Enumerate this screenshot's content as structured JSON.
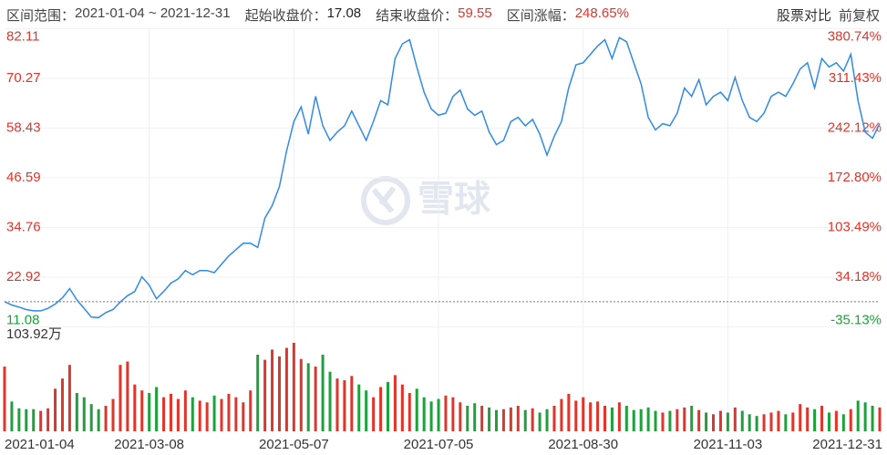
{
  "header": {
    "range_label": "区间范围：",
    "range": "2021-01-04 ~ 2021-12-31",
    "start_label": "起始收盘价：",
    "start_close": 17.08,
    "end_label": "结束收盘价：",
    "end_close": 59.55,
    "change_label": "区间涨幅：",
    "change": {
      "value": 248.65,
      "label": "248.65%"
    },
    "compare": "股票对比",
    "adjust": "前复权"
  },
  "watermark": "雪球",
  "chart_data": {
    "type": "line",
    "color": "#2f8be6",
    "up_color": "#e0352b",
    "down_color": "#1ea03c",
    "grid": true,
    "categories": [
      "2021-01-04",
      null,
      null,
      null,
      null,
      null,
      null,
      null,
      null,
      null,
      null,
      null,
      null,
      null,
      null,
      null,
      null,
      null,
      null,
      null,
      "2021-03-08",
      null,
      null,
      null,
      null,
      null,
      null,
      null,
      null,
      null,
      null,
      null,
      null,
      null,
      null,
      null,
      null,
      null,
      null,
      null,
      "2021-05-07",
      null,
      null,
      null,
      null,
      null,
      null,
      null,
      null,
      null,
      null,
      null,
      null,
      null,
      null,
      null,
      null,
      null,
      null,
      null,
      "2021-07-05",
      null,
      null,
      null,
      null,
      null,
      null,
      null,
      null,
      null,
      null,
      null,
      null,
      null,
      null,
      null,
      null,
      null,
      null,
      null,
      "2021-08-30",
      null,
      null,
      null,
      null,
      null,
      null,
      null,
      null,
      null,
      null,
      null,
      null,
      null,
      null,
      null,
      null,
      null,
      null,
      null,
      "2021-11-03",
      null,
      null,
      null,
      null,
      null,
      null,
      null,
      null,
      null,
      null,
      null,
      null,
      null,
      null,
      null,
      null,
      null,
      null,
      null,
      null,
      "2021-12-31"
    ],
    "values": [
      17.1,
      16.3,
      15.8,
      15.2,
      14.9,
      14.9,
      15.5,
      16.5,
      18.0,
      20.2,
      17.5,
      15.5,
      13.4,
      13.3,
      14.5,
      15.2,
      17.0,
      18.5,
      19.5,
      23.0,
      21.0,
      17.8,
      19.5,
      21.5,
      22.5,
      24.5,
      23.5,
      24.5,
      24.5,
      24.0,
      26.0,
      28.0,
      29.5,
      31.0,
      31.0,
      30.0,
      37.0,
      40.0,
      44.5,
      53.0,
      60.0,
      63.5,
      57.0,
      66.0,
      59.0,
      55.5,
      57.5,
      59.0,
      62.5,
      59.0,
      55.5,
      60.0,
      65.0,
      64.0,
      75.0,
      78.5,
      79.5,
      73.0,
      67.0,
      63.0,
      61.5,
      62.0,
      66.0,
      67.5,
      63.0,
      61.5,
      62.5,
      57.5,
      54.5,
      55.5,
      60.0,
      61.0,
      59.0,
      60.5,
      57.0,
      52.0,
      56.5,
      60.0,
      68.0,
      73.5,
      74.0,
      76.0,
      78.0,
      79.5,
      75.0,
      80.0,
      79.0,
      74.0,
      69.0,
      61.0,
      58.0,
      59.5,
      59.0,
      62.0,
      68.0,
      66.0,
      70.0,
      64.0,
      66.0,
      67.0,
      65.0,
      70.5,
      65.0,
      61.0,
      60.0,
      62.0,
      66.0,
      67.0,
      66.0,
      69.0,
      72.5,
      74.0,
      68.0,
      75.0,
      73.0,
      74.0,
      72.0,
      76.0,
      65.0,
      57.5,
      56.0,
      59.55
    ],
    "ylim": [
      11.08,
      82.11
    ],
    "yticks": [
      82.11,
      70.27,
      58.43,
      46.59,
      34.76,
      22.92,
      11.08
    ],
    "y2lim": [
      -35.13,
      380.74
    ],
    "y2ticks": [
      {
        "value": 380.74,
        "label": "380.74%"
      },
      {
        "value": 311.43,
        "label": "311.43%"
      },
      {
        "value": 242.12,
        "label": "242.12%"
      },
      {
        "value": 172.8,
        "label": "172.80%"
      },
      {
        "value": 103.49,
        "label": "103.49%"
      },
      {
        "value": 34.18,
        "label": "34.18%"
      },
      {
        "value": -35.13,
        "label": "-35.13%"
      }
    ],
    "volume": {
      "values": [
        76,
        35,
        27,
        26,
        26,
        24,
        27,
        50,
        62,
        78,
        45,
        40,
        32,
        26,
        30,
        38,
        78,
        82,
        55,
        48,
        45,
        52,
        40,
        44,
        38,
        48,
        40,
        36,
        34,
        42,
        38,
        44,
        40,
        34,
        48,
        90,
        84,
        96,
        88,
        98,
        103.92,
        85,
        80,
        76,
        90,
        70,
        62,
        60,
        65,
        55,
        48,
        40,
        52,
        58,
        66,
        55,
        45,
        50,
        40,
        35,
        38,
        42,
        40,
        34,
        30,
        33,
        30,
        28,
        25,
        26,
        28,
        30,
        25,
        27,
        22,
        26,
        30,
        38,
        44,
        36,
        40,
        34,
        35,
        30,
        28,
        34,
        30,
        25,
        26,
        28,
        24,
        22,
        24,
        26,
        28,
        30,
        25,
        22,
        20,
        24,
        22,
        28,
        24,
        20,
        18,
        20,
        22,
        24,
        20,
        22,
        32,
        28,
        26,
        30,
        22,
        24,
        20,
        26,
        36,
        34,
        30,
        28
      ],
      "ylim": [
        0,
        103.92
      ],
      "yticks": [
        {
          "value": 103.92,
          "label": "103.92万"
        }
      ]
    }
  }
}
